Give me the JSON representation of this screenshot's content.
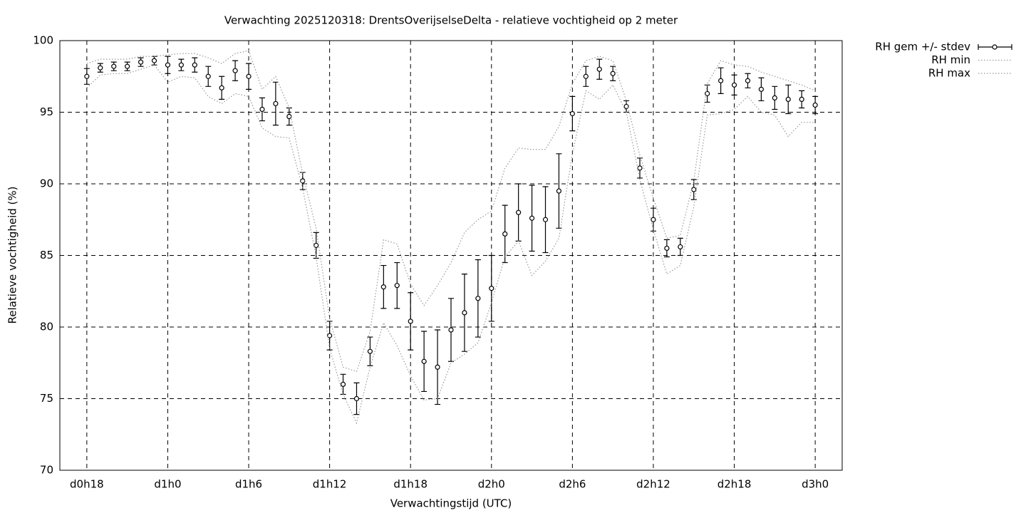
{
  "chart_data": {
    "type": "line",
    "title": "Verwachting 2025120318: DrentsOverijselseDelta - relatieve vochtigheid op 2 meter",
    "xlabel": "Verwachtingstijd (UTC)",
    "ylabel": "Relatieve vochtigheid (%)",
    "x": [
      18,
      19,
      20,
      21,
      22,
      23,
      24,
      25,
      26,
      27,
      28,
      29,
      30,
      31,
      32,
      33,
      34,
      35,
      36,
      37,
      38,
      39,
      40,
      41,
      42,
      43,
      44,
      45,
      46,
      47,
      48,
      49,
      50,
      51,
      52,
      53,
      54,
      55,
      56,
      57,
      58,
      59,
      60,
      61,
      62,
      63,
      64,
      65,
      66,
      67,
      68,
      69,
      70,
      71,
      72
    ],
    "xlim": [
      16,
      74
    ],
    "xticks": [
      {
        "value": 18,
        "label": "d0h18"
      },
      {
        "value": 24,
        "label": "d1h0"
      },
      {
        "value": 30,
        "label": "d1h6"
      },
      {
        "value": 36,
        "label": "d1h12"
      },
      {
        "value": 42,
        "label": "d1h18"
      },
      {
        "value": 48,
        "label": "d2h0"
      },
      {
        "value": 54,
        "label": "d2h6"
      },
      {
        "value": 60,
        "label": "d2h12"
      },
      {
        "value": 66,
        "label": "d2h18"
      },
      {
        "value": 72,
        "label": "d3h0"
      }
    ],
    "ylim": [
      70,
      100
    ],
    "yticks": [
      70,
      75,
      80,
      85,
      90,
      95,
      100
    ],
    "grid": true,
    "legend": "outside-top-right",
    "series": [
      {
        "name": "RH gem +/- stdev",
        "type": "errorbar",
        "color": "#000000",
        "values": [
          97.5,
          98.1,
          98.2,
          98.2,
          98.5,
          98.6,
          98.3,
          98.3,
          98.3,
          97.5,
          96.7,
          97.9,
          97.5,
          95.2,
          95.6,
          94.7,
          90.2,
          85.7,
          79.4,
          76.0,
          75.0,
          78.3,
          82.8,
          82.9,
          80.4,
          77.6,
          77.2,
          79.8,
          81.0,
          82.0,
          82.7,
          86.5,
          88.0,
          87.6,
          87.5,
          89.5,
          94.9,
          97.5,
          98.0,
          97.7,
          95.4,
          91.1,
          87.5,
          85.5,
          85.6,
          89.6,
          96.3,
          97.2,
          96.9,
          97.2,
          96.6,
          96.0,
          95.9,
          95.9,
          95.5
        ],
        "errors": [
          0.55,
          0.3,
          0.3,
          0.3,
          0.3,
          0.3,
          0.6,
          0.4,
          0.5,
          0.7,
          0.8,
          0.7,
          0.9,
          0.8,
          1.5,
          0.6,
          0.6,
          0.9,
          1.0,
          0.7,
          1.1,
          1.0,
          1.5,
          1.6,
          2.0,
          2.1,
          2.6,
          2.2,
          2.7,
          2.7,
          2.3,
          2.0,
          2.0,
          2.3,
          2.3,
          2.6,
          1.2,
          0.7,
          0.7,
          0.5,
          0.4,
          0.7,
          0.8,
          0.6,
          0.6,
          0.7,
          0.6,
          0.9,
          0.7,
          0.5,
          0.8,
          0.8,
          1.0,
          0.6,
          0.6
        ]
      },
      {
        "name": "RH min",
        "type": "line",
        "color": "#999999",
        "values": [
          96.7,
          97.6,
          97.7,
          97.7,
          98.0,
          98.3,
          97.1,
          97.5,
          97.4,
          96.1,
          95.6,
          96.3,
          96.1,
          93.9,
          93.3,
          93.2,
          89.7,
          84.9,
          78.5,
          75.3,
          73.3,
          77.2,
          80.3,
          78.7,
          76.6,
          74.9,
          75.0,
          77.5,
          78.1,
          78.9,
          81.7,
          84.9,
          86.0,
          83.6,
          84.6,
          86.2,
          92.1,
          96.5,
          95.9,
          96.9,
          95.0,
          90.3,
          86.8,
          83.7,
          84.3,
          88.4,
          94.8,
          94.9,
          95.2,
          96.1,
          95.0,
          94.8,
          93.3,
          94.3,
          94.3
        ]
      },
      {
        "name": "RH max",
        "type": "line",
        "color": "#999999",
        "values": [
          98.4,
          98.7,
          98.7,
          98.7,
          98.9,
          98.9,
          99.0,
          99.1,
          99.1,
          98.8,
          98.4,
          99.1,
          99.3,
          96.6,
          97.5,
          95.3,
          90.7,
          86.9,
          80.6,
          77.2,
          76.9,
          79.7,
          86.1,
          85.8,
          83.0,
          81.5,
          82.9,
          84.5,
          86.6,
          87.5,
          88.1,
          91.1,
          92.5,
          92.4,
          92.4,
          94.0,
          97.0,
          98.6,
          98.9,
          98.6,
          95.8,
          92.0,
          89.0,
          86.2,
          86.4,
          90.2,
          97.0,
          98.6,
          98.3,
          98.2,
          97.8,
          97.5,
          97.2,
          96.9,
          96.5
        ]
      }
    ]
  }
}
